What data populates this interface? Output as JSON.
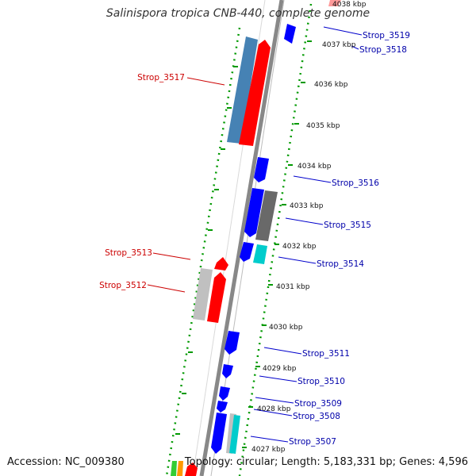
{
  "title": "Salinispora tropica CNB-440, complete genome",
  "footer": {
    "accession": "Accession: NC_009380",
    "topology": "Topology: circular; Length: 5,183,331 bp; Genes: 4,596"
  },
  "ticks": [
    "4038 kbp",
    "4037 kbp",
    "4036 kbp",
    "4035 kbp",
    "4034 kbp",
    "4033 kbp",
    "4032 kbp",
    "4031 kbp",
    "4030 kbp",
    "4029 kbp",
    "4028 kbp",
    "4027 kbp"
  ],
  "genes": [
    {
      "label": "Strop_3519",
      "strand": "+",
      "color": "#0000ff"
    },
    {
      "label": "Strop_3518",
      "strand": "+",
      "color": "#0000ff"
    },
    {
      "label": "Strop_3517",
      "strand": "-",
      "color": "#ff0000"
    },
    {
      "label": "Strop_3516",
      "strand": "+",
      "color": "#0000ff"
    },
    {
      "label": "Strop_3515",
      "strand": "+",
      "color": "#0000ff"
    },
    {
      "label": "Strop_3514",
      "strand": "+",
      "color": "#0000ff"
    },
    {
      "label": "Strop_3513",
      "strand": "-",
      "color": "#ff0000"
    },
    {
      "label": "Strop_3512",
      "strand": "-",
      "color": "#ff0000"
    },
    {
      "label": "Strop_3511",
      "strand": "+",
      "color": "#0000ff"
    },
    {
      "label": "Strop_3510",
      "strand": "+",
      "color": "#0000ff"
    },
    {
      "label": "Strop_3509",
      "strand": "+",
      "color": "#0000ff"
    },
    {
      "label": "Strop_3508",
      "strand": "+",
      "color": "#0000ff"
    },
    {
      "label": "Strop_3507",
      "strand": "+",
      "color": "#0000ff"
    }
  ],
  "colors": {
    "backbone": "#888888",
    "tick_marks": "#009900",
    "forward_label": "#0000aa",
    "reverse_label": "#cc0000",
    "cds_forward": "#0000ff",
    "cds_reverse": "#ff0000",
    "gc_high": "#4682b4",
    "gc_low": "#696969",
    "gc_light": "#c0c0c0",
    "cyan": "#00cccc"
  }
}
